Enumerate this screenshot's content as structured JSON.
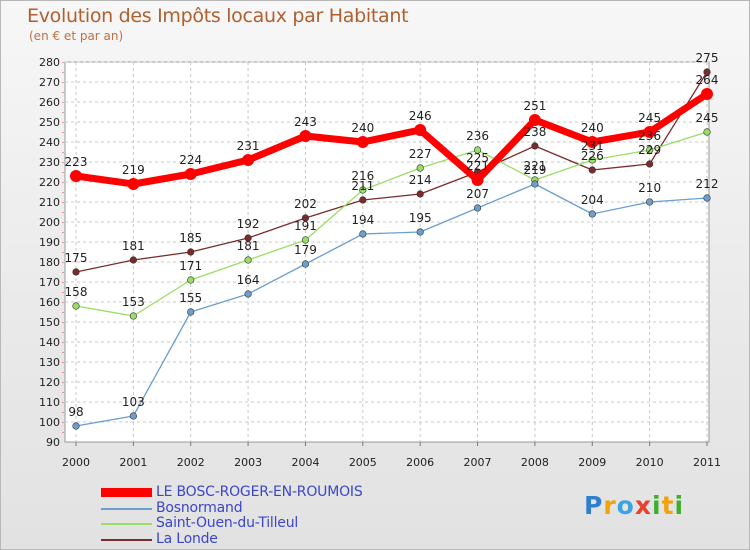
{
  "chart_data": {
    "type": "line",
    "title": "Evolution des Impôts locaux par Habitant",
    "subtitle": "(en € et par an)",
    "x": [
      "2000",
      "2001",
      "2002",
      "2003",
      "2004",
      "2005",
      "2006",
      "2007",
      "2008",
      "2009",
      "2010",
      "2011"
    ],
    "ylim": [
      90,
      280
    ],
    "yticks": [
      90,
      100,
      110,
      120,
      130,
      140,
      150,
      160,
      170,
      180,
      190,
      200,
      210,
      220,
      230,
      240,
      250,
      260,
      270,
      280
    ],
    "grid": true,
    "series": [
      {
        "name": "LE BOSC-ROGER-EN-ROUMOIS",
        "color": "#ff0000",
        "values": [
          223,
          219,
          224,
          231,
          243,
          240,
          246,
          221,
          251,
          240,
          245,
          264
        ]
      },
      {
        "name": "Bosnormand",
        "color": "#6a9fd0",
        "values": [
          98,
          103,
          155,
          164,
          179,
          194,
          195,
          207,
          219,
          204,
          210,
          212
        ]
      },
      {
        "name": "Saint-Ouen-du-Tilleul",
        "color": "#99dd66",
        "values": [
          158,
          153,
          171,
          181,
          191,
          216,
          227,
          236,
          221,
          231,
          236,
          245
        ]
      },
      {
        "name": "La Londe",
        "color": "#7a2b2b",
        "values": [
          175,
          181,
          185,
          192,
          202,
          211,
          214,
          225,
          238,
          226,
          229,
          275
        ]
      }
    ],
    "labels": [
      [
        "223",
        "219",
        "224",
        "231",
        "243",
        "240",
        "246",
        "221",
        "251",
        "240",
        "245",
        "264"
      ],
      [
        "98",
        "103",
        "155",
        "164",
        "179",
        "194",
        "195",
        "207",
        "219",
        "204",
        "210",
        "212"
      ],
      [
        "158",
        "153",
        "171",
        "181",
        "191",
        "216",
        "227",
        "236",
        "221",
        "231",
        "236",
        "245"
      ],
      [
        "175",
        "181",
        "185",
        "192",
        "202",
        "211",
        "214",
        "225",
        "238",
        "226",
        "229",
        "275"
      ]
    ]
  },
  "legend": {
    "items": [
      {
        "label": "LE BOSC-ROGER-EN-ROUMOIS",
        "color": "#ff0000"
      },
      {
        "label": "Bosnormand",
        "color": "#6a9fd0"
      },
      {
        "label": "Saint-Ouen-du-Tilleul",
        "color": "#99dd66"
      },
      {
        "label": "La Londe",
        "color": "#7a2b2b"
      }
    ]
  },
  "logo": {
    "text": "Proxiti"
  }
}
